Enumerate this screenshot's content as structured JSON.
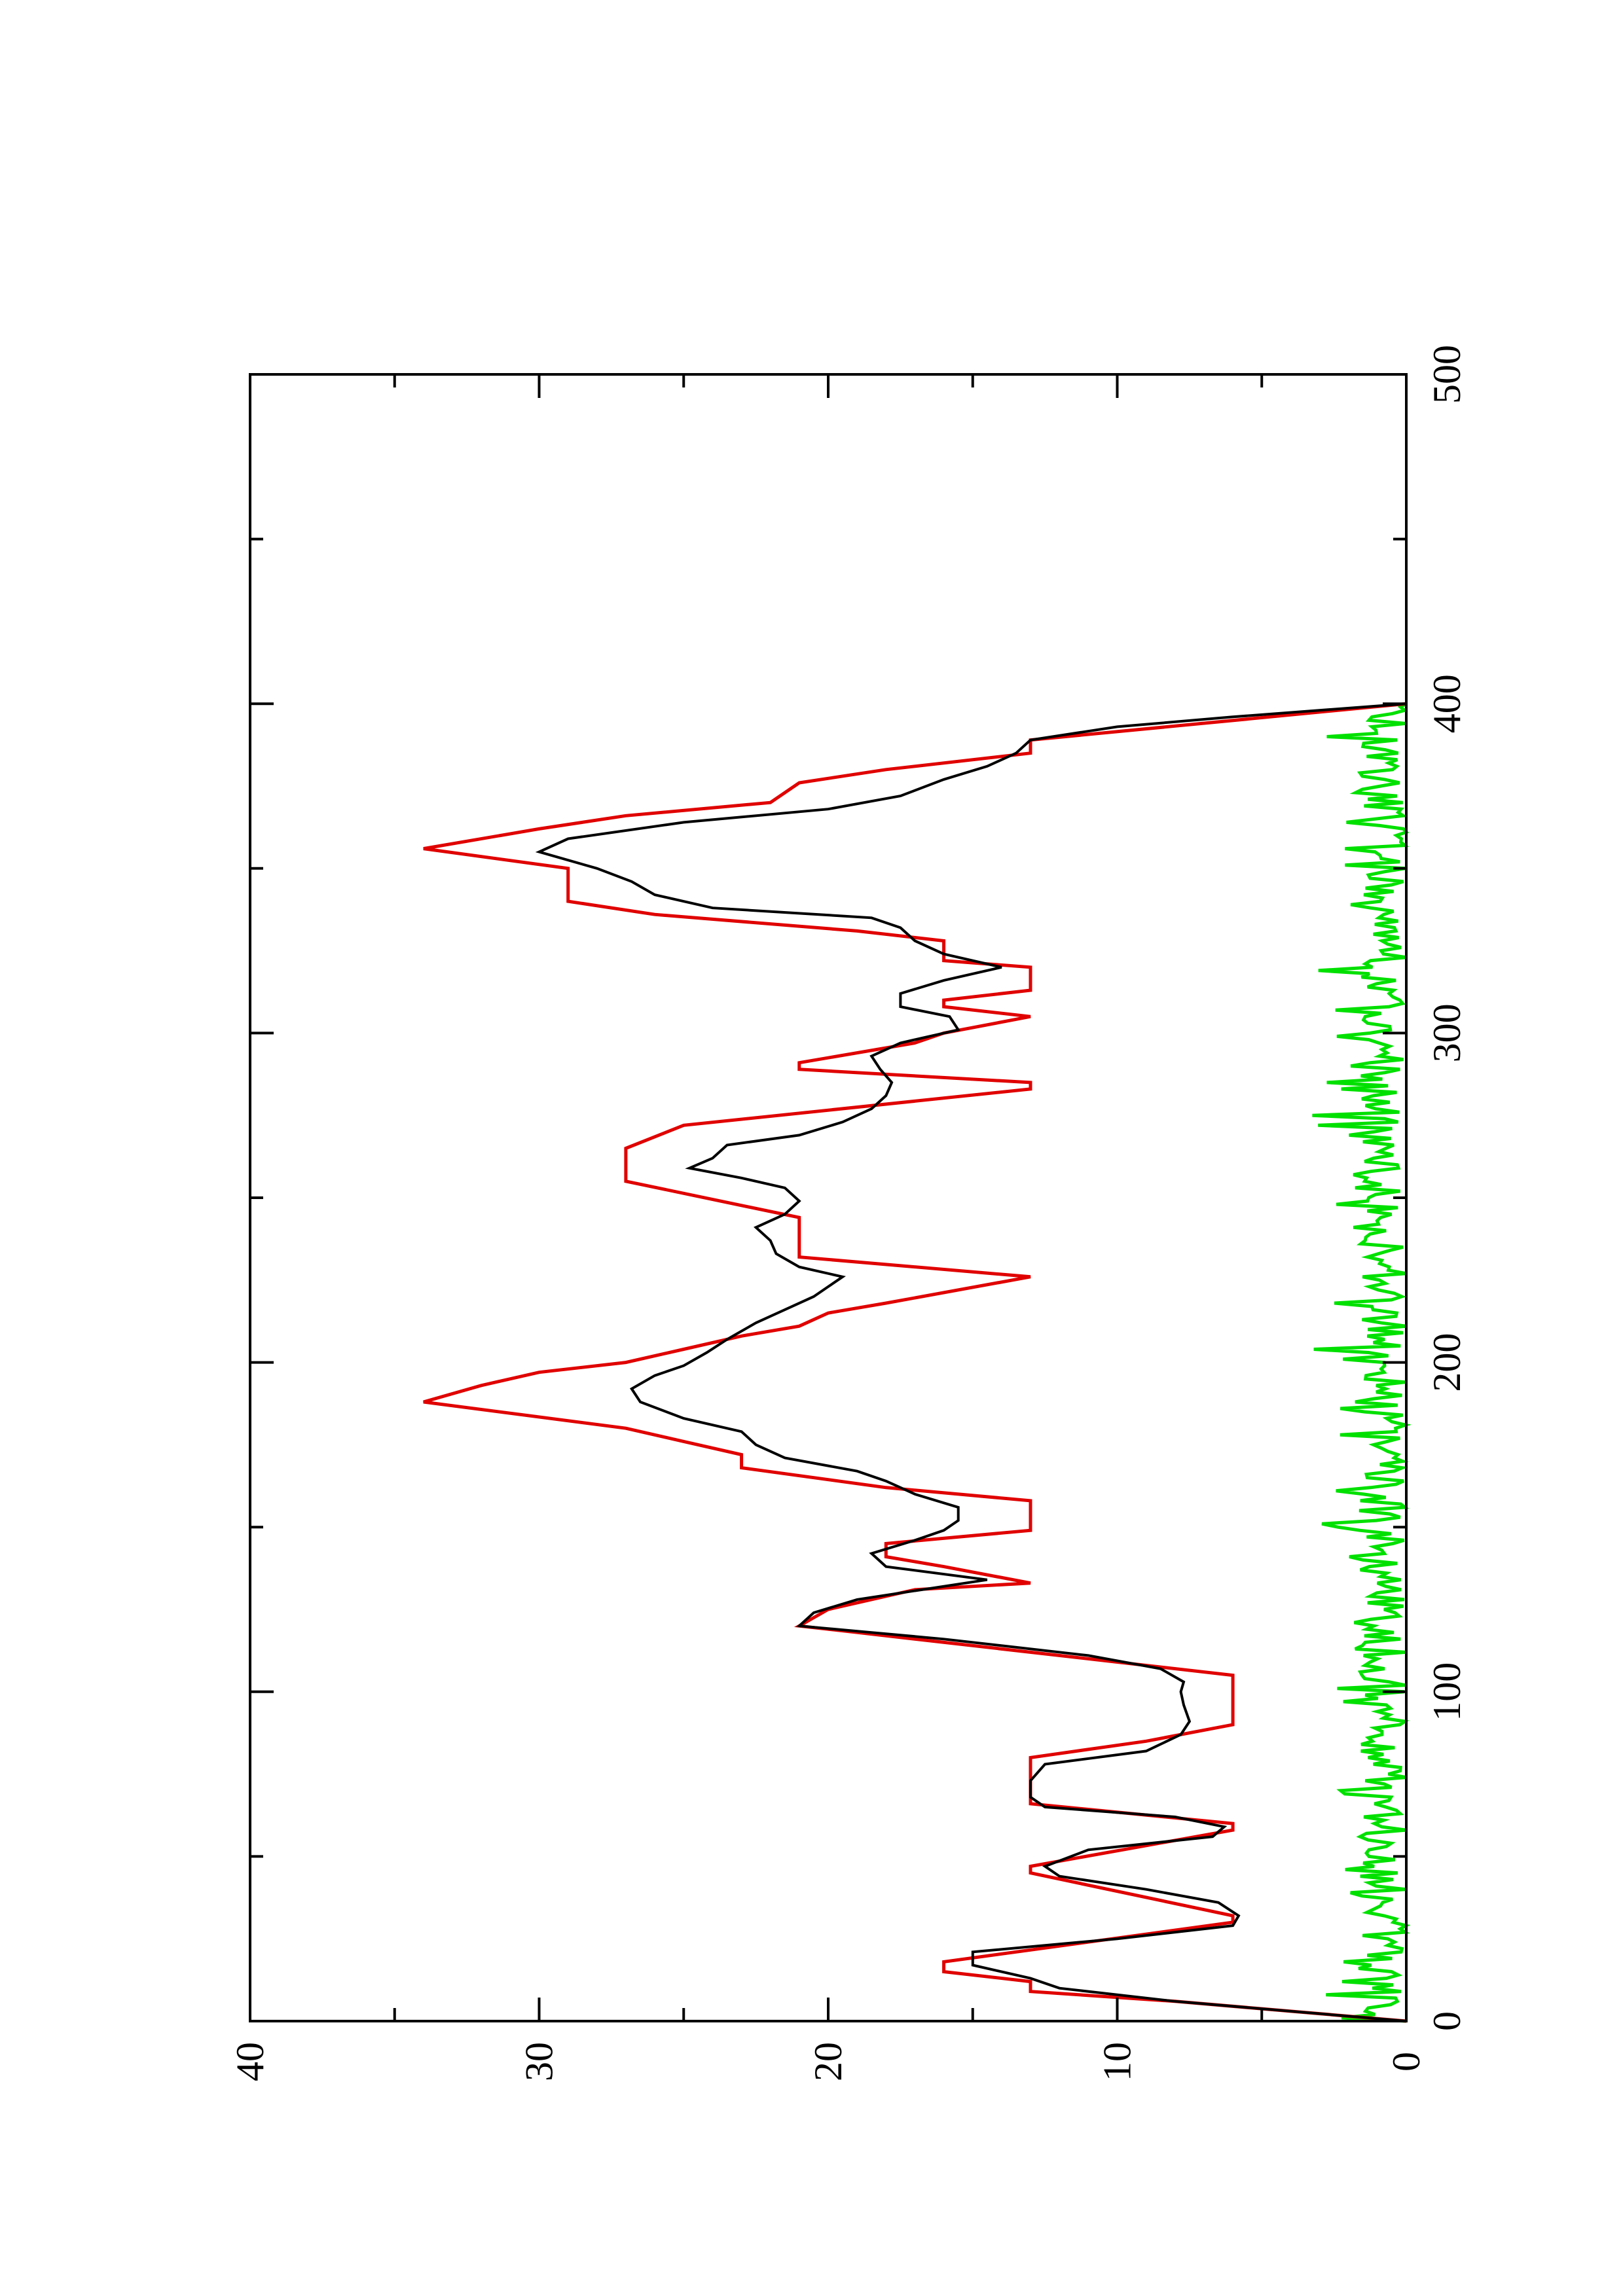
{
  "chart_data": {
    "type": "line",
    "title": "",
    "xlabel": "",
    "ylabel": "",
    "xlim": [
      0,
      500
    ],
    "ylim": [
      0,
      40
    ],
    "x_ticks": [
      0,
      100,
      200,
      300,
      400,
      500
    ],
    "x_tick_labels": [
      "0",
      "100",
      "200",
      "300",
      "400",
      "500"
    ],
    "y_ticks": [
      0,
      10,
      20,
      30,
      40
    ],
    "y_tick_labels": [
      "0",
      "10",
      "20",
      "30",
      "40"
    ],
    "grid": false,
    "orientation": "rotated 90° counter-clockwise (x axis vertical, increasing upward; y axis horizontal, increasing leftward)",
    "series": [
      {
        "color": "#e00000",
        "points": [
          [
            0,
            0
          ],
          [
            6,
            8
          ],
          [
            9,
            13
          ],
          [
            12,
            13
          ],
          [
            15,
            16
          ],
          [
            18,
            16
          ],
          [
            30,
            6
          ],
          [
            32,
            6
          ],
          [
            45,
            13
          ],
          [
            47,
            13
          ],
          [
            58,
            6
          ],
          [
            60,
            6
          ],
          [
            66,
            13
          ],
          [
            80,
            13
          ],
          [
            85,
            9
          ],
          [
            90,
            6
          ],
          [
            105,
            6
          ],
          [
            118,
            19
          ],
          [
            120,
            21
          ],
          [
            125,
            20
          ],
          [
            131,
            17
          ],
          [
            133,
            13
          ],
          [
            138,
            16
          ],
          [
            141,
            18
          ],
          [
            145,
            18
          ],
          [
            149,
            13
          ],
          [
            158,
            13
          ],
          [
            162,
            18
          ],
          [
            168,
            23
          ],
          [
            172,
            23
          ],
          [
            176,
            25
          ],
          [
            180,
            27
          ],
          [
            188,
            34
          ],
          [
            193,
            32
          ],
          [
            197,
            30
          ],
          [
            200,
            27
          ],
          [
            204,
            25
          ],
          [
            208,
            23
          ],
          [
            211,
            21
          ],
          [
            215,
            20
          ],
          [
            218,
            18
          ],
          [
            226,
            13
          ],
          [
            232,
            21
          ],
          [
            244,
            21
          ],
          [
            255,
            27
          ],
          [
            265,
            27
          ],
          [
            272,
            25
          ],
          [
            283,
            13
          ],
          [
            285,
            13
          ],
          [
            289,
            21
          ],
          [
            291,
            21
          ],
          [
            297,
            17
          ],
          [
            300,
            16
          ],
          [
            305,
            13
          ],
          [
            308,
            16
          ],
          [
            310,
            16
          ],
          [
            313,
            13
          ],
          [
            320,
            13
          ],
          [
            322,
            16
          ],
          [
            328,
            16
          ],
          [
            331,
            19
          ],
          [
            336,
            26
          ],
          [
            340,
            29
          ],
          [
            350,
            29
          ],
          [
            356,
            34
          ],
          [
            362,
            30
          ],
          [
            366,
            27
          ],
          [
            370,
            22
          ],
          [
            376,
            21
          ],
          [
            380,
            18
          ],
          [
            385,
            13
          ],
          [
            389,
            13
          ],
          [
            400,
            0
          ]
        ]
      },
      {
        "color": "#000000",
        "points": [
          [
            0,
            0
          ],
          [
            6,
            8
          ],
          [
            10,
            12
          ],
          [
            13,
            13
          ],
          [
            17,
            15
          ],
          [
            21,
            15
          ],
          [
            25,
            10
          ],
          [
            29,
            6
          ],
          [
            32,
            5.8
          ],
          [
            36,
            6.5
          ],
          [
            40,
            9
          ],
          [
            44,
            12
          ],
          [
            47,
            12.5
          ],
          [
            52,
            11
          ],
          [
            56,
            6.7
          ],
          [
            59,
            6.3
          ],
          [
            62,
            8
          ],
          [
            65,
            12.5
          ],
          [
            68,
            13
          ],
          [
            73,
            13
          ],
          [
            78,
            12.5
          ],
          [
            82,
            9
          ],
          [
            87,
            7.8
          ],
          [
            91,
            7.5
          ],
          [
            96,
            7.7
          ],
          [
            100,
            7.8
          ],
          [
            103,
            7.7
          ],
          [
            107,
            8.5
          ],
          [
            111,
            11
          ],
          [
            116,
            16
          ],
          [
            118,
            18.5
          ],
          [
            120,
            21
          ],
          [
            124,
            20.5
          ],
          [
            128,
            19
          ],
          [
            134,
            14.5
          ],
          [
            138,
            18
          ],
          [
            142,
            18.5
          ],
          [
            146,
            17
          ],
          [
            149,
            16
          ],
          [
            152,
            15.5
          ],
          [
            156,
            15.5
          ],
          [
            160,
            17
          ],
          [
            164,
            18
          ],
          [
            167,
            19
          ],
          [
            171,
            21.5
          ],
          [
            175,
            22.5
          ],
          [
            179,
            23
          ],
          [
            183,
            25
          ],
          [
            188,
            26.5
          ],
          [
            192,
            26.8
          ],
          [
            196,
            26
          ],
          [
            199,
            25
          ],
          [
            203,
            24.2
          ],
          [
            207,
            23.5
          ],
          [
            212,
            22.5
          ],
          [
            216,
            21.5
          ],
          [
            220,
            20.5
          ],
          [
            223,
            20
          ],
          [
            226,
            19.5
          ],
          [
            229,
            21
          ],
          [
            233,
            21.8
          ],
          [
            237,
            22
          ],
          [
            241,
            22.5
          ],
          [
            245,
            21.5
          ],
          [
            249,
            21
          ],
          [
            253,
            21.5
          ],
          [
            256,
            23
          ],
          [
            259,
            24.8
          ],
          [
            262,
            24
          ],
          [
            266,
            23.5
          ],
          [
            269,
            21
          ],
          [
            273,
            19.5
          ],
          [
            277,
            18.5
          ],
          [
            281,
            18
          ],
          [
            285,
            17.8
          ],
          [
            289,
            18.2
          ],
          [
            293,
            18.5
          ],
          [
            297,
            17.5
          ],
          [
            301,
            15.5
          ],
          [
            305,
            15.8
          ],
          [
            308,
            17.5
          ],
          [
            312,
            17.5
          ],
          [
            316,
            16
          ],
          [
            320,
            14
          ],
          [
            324,
            16
          ],
          [
            328,
            17
          ],
          [
            332,
            17.5
          ],
          [
            335,
            18.5
          ],
          [
            338,
            24
          ],
          [
            342,
            26
          ],
          [
            346,
            26.8
          ],
          [
            350,
            28
          ],
          [
            355,
            30
          ],
          [
            359,
            29
          ],
          [
            364,
            25
          ],
          [
            368,
            20
          ],
          [
            372,
            17.5
          ],
          [
            377,
            16
          ],
          [
            381,
            14.5
          ],
          [
            385,
            13.5
          ],
          [
            389,
            13
          ],
          [
            393,
            10
          ],
          [
            396,
            6
          ],
          [
            400,
            0
          ]
        ]
      },
      {
        "color": "#00e000",
        "points": "generated"
      }
    ]
  }
}
